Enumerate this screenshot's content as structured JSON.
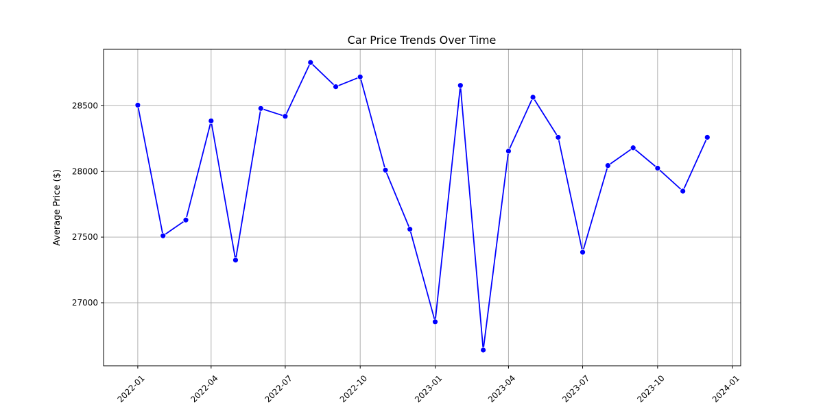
{
  "chart_data": {
    "type": "line",
    "title": "Car Price Trends Over Time",
    "xlabel": "",
    "ylabel": "Average Price ($)",
    "x": [
      "2022-01-01",
      "2022-02-01",
      "2022-03-01",
      "2022-04-01",
      "2022-05-01",
      "2022-06-01",
      "2022-07-01",
      "2022-08-01",
      "2022-09-01",
      "2022-10-01",
      "2022-11-01",
      "2022-12-01",
      "2023-01-01",
      "2023-02-01",
      "2023-03-01",
      "2023-04-01",
      "2023-05-01",
      "2023-06-01",
      "2023-07-01",
      "2023-08-01",
      "2023-09-01",
      "2023-10-01",
      "2023-11-01",
      "2023-12-01"
    ],
    "series": [
      {
        "values": [
          28505,
          27510,
          27630,
          28385,
          27325,
          28480,
          28420,
          28830,
          28645,
          28720,
          28010,
          27560,
          26855,
          28655,
          26640,
          28155,
          28565,
          28260,
          27385,
          28045,
          28180,
          28025,
          27850,
          28260
        ],
        "color": "#0000ff",
        "marker": "circle"
      }
    ],
    "xlim": [
      "2021-11-20",
      "2024-01-11"
    ],
    "ylim": [
      26520,
      28930
    ],
    "x_ticks": [
      "2022-01",
      "2022-04",
      "2022-07",
      "2022-10",
      "2023-01",
      "2023-04",
      "2023-07",
      "2023-10",
      "2024-01"
    ],
    "y_ticks": [
      27000,
      27500,
      28000,
      28500
    ],
    "grid": true,
    "legend": "none"
  }
}
